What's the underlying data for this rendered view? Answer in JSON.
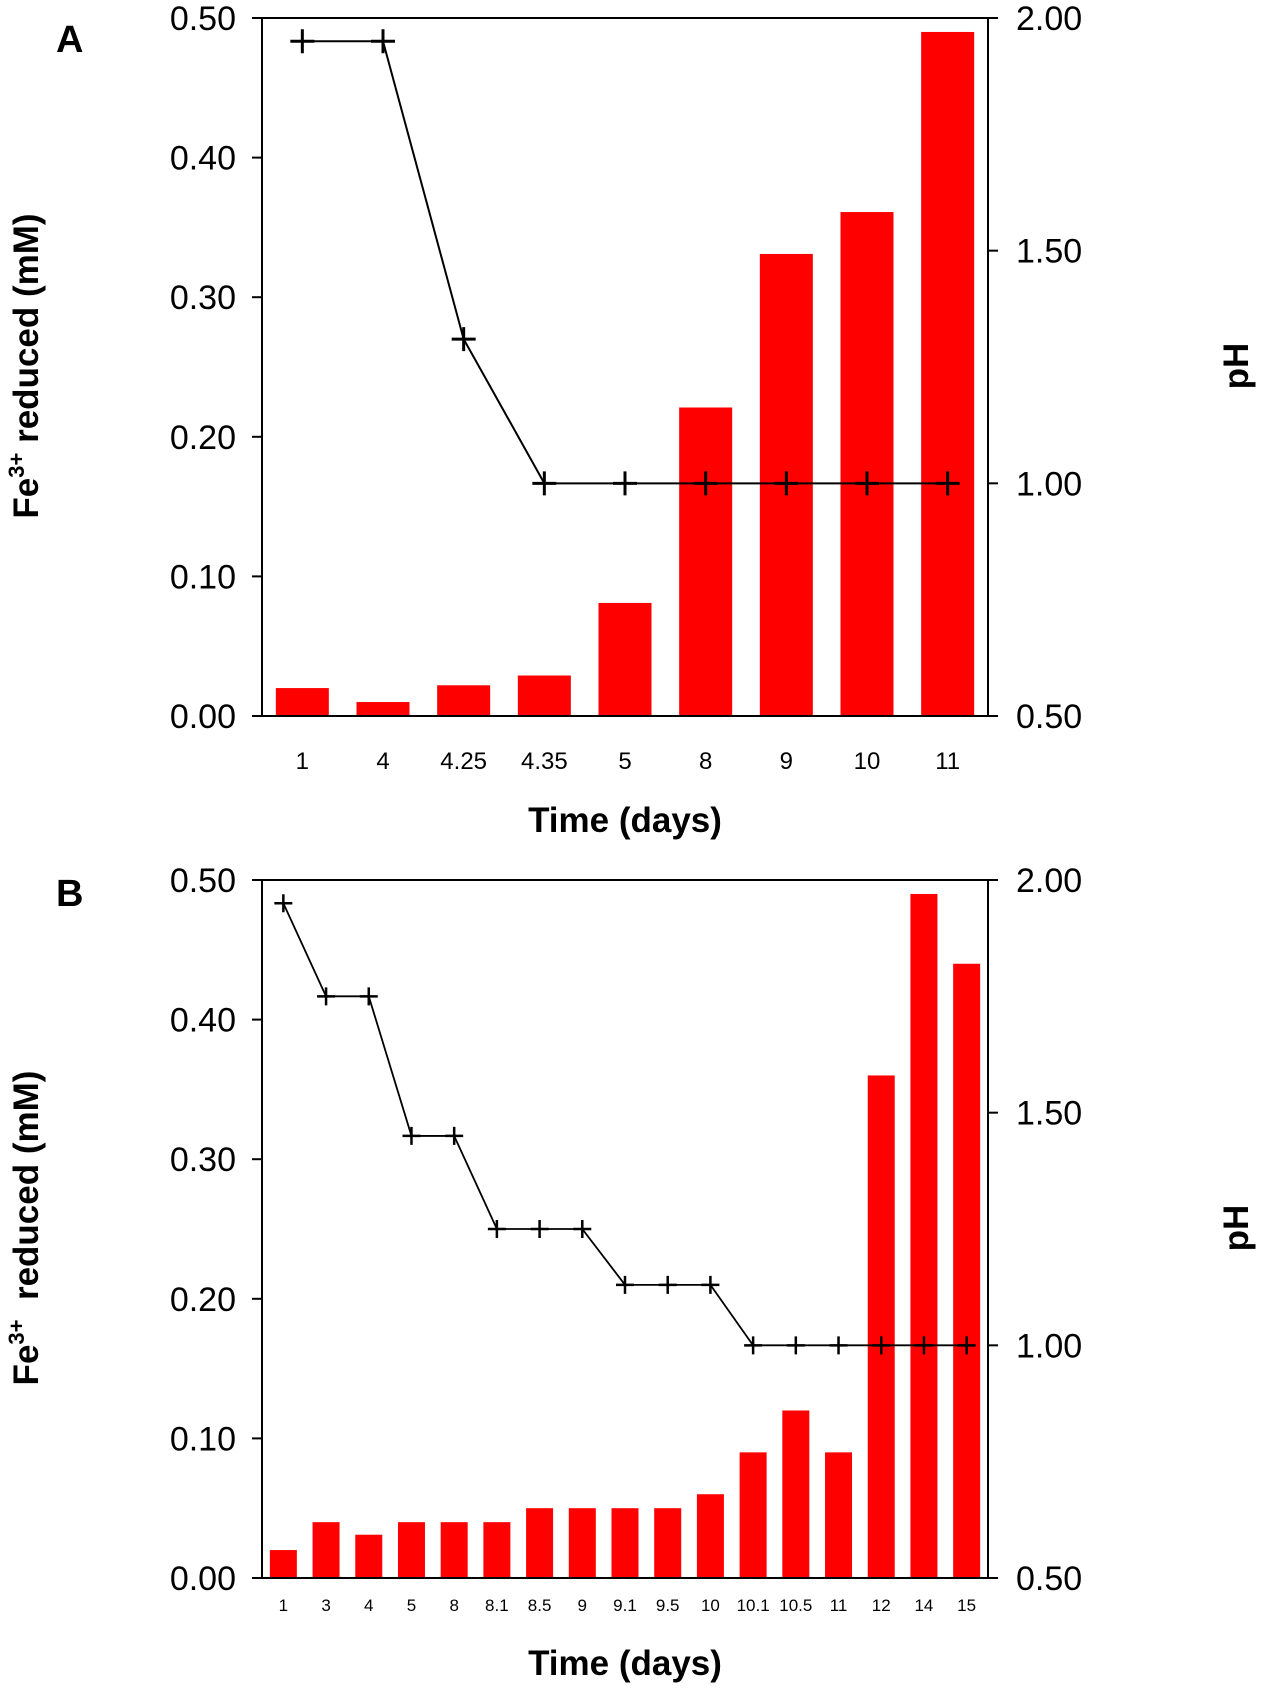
{
  "colors": {
    "bar": "#ff0000",
    "line": "#000000",
    "axis": "#000000"
  },
  "chart_data": [
    {
      "panel_label": "A",
      "type": "bar",
      "categories": [
        "1",
        "4",
        "4.25",
        "4.35",
        "5",
        "8",
        "9",
        "10",
        "11"
      ],
      "series": [
        {
          "name": "Fe3+ reduced (mM)",
          "type": "bar",
          "axis": "left",
          "values": [
            0.02,
            0.01,
            0.022,
            0.029,
            0.081,
            0.221,
            0.331,
            0.361,
            0.49
          ]
        },
        {
          "name": "pH",
          "type": "line",
          "axis": "right",
          "values": [
            1.95,
            1.95,
            1.31,
            1.0,
            1.0,
            1.0,
            1.0,
            1.0,
            1.0
          ]
        }
      ],
      "xlabel": "Time (days)",
      "ylabel_main": "Fe",
      "ylabel_sup": "3+",
      "ylabel_rest": " reduced (mM)",
      "y2label": "pH",
      "ylim": [
        0,
        0.5
      ],
      "y2lim": [
        0.5,
        2.0
      ],
      "yticks": [
        "0.00",
        "0.10",
        "0.20",
        "0.30",
        "0.40",
        "0.50"
      ],
      "y2ticks": [
        "0.50",
        "1.00",
        "1.50",
        "2.00"
      ]
    },
    {
      "panel_label": "B",
      "type": "bar",
      "categories": [
        "1",
        "3",
        "4",
        "5",
        "8",
        "8.1",
        "8.5",
        "9",
        "9.1",
        "9.5",
        "10",
        "10.1",
        "10.5",
        "11",
        "12",
        "14",
        "15"
      ],
      "series": [
        {
          "name": "Fe3+ reduced (mM)",
          "type": "bar",
          "axis": "left",
          "values": [
            0.02,
            0.04,
            0.031,
            0.04,
            0.04,
            0.04,
            0.05,
            0.05,
            0.05,
            0.05,
            0.06,
            0.09,
            0.12,
            0.09,
            0.36,
            0.49,
            0.44
          ]
        },
        {
          "name": "pH",
          "type": "line",
          "axis": "right",
          "values": [
            1.95,
            1.75,
            1.75,
            1.45,
            1.45,
            1.25,
            1.25,
            1.25,
            1.13,
            1.13,
            1.13,
            1.0,
            1.0,
            1.0,
            1.0,
            1.0,
            1.0
          ]
        }
      ],
      "xlabel": "Time (days)",
      "ylabel_main": "Fe",
      "ylabel_sup": "3+",
      "ylabel_rest": "  reduced (mM)",
      "y2label": "pH",
      "ylim": [
        0,
        0.5
      ],
      "y2lim": [
        0.5,
        2.0
      ],
      "yticks": [
        "0.00",
        "0.10",
        "0.20",
        "0.30",
        "0.40",
        "0.50"
      ],
      "y2ticks": [
        "0.50",
        "1.00",
        "1.50",
        "2.00"
      ]
    }
  ]
}
